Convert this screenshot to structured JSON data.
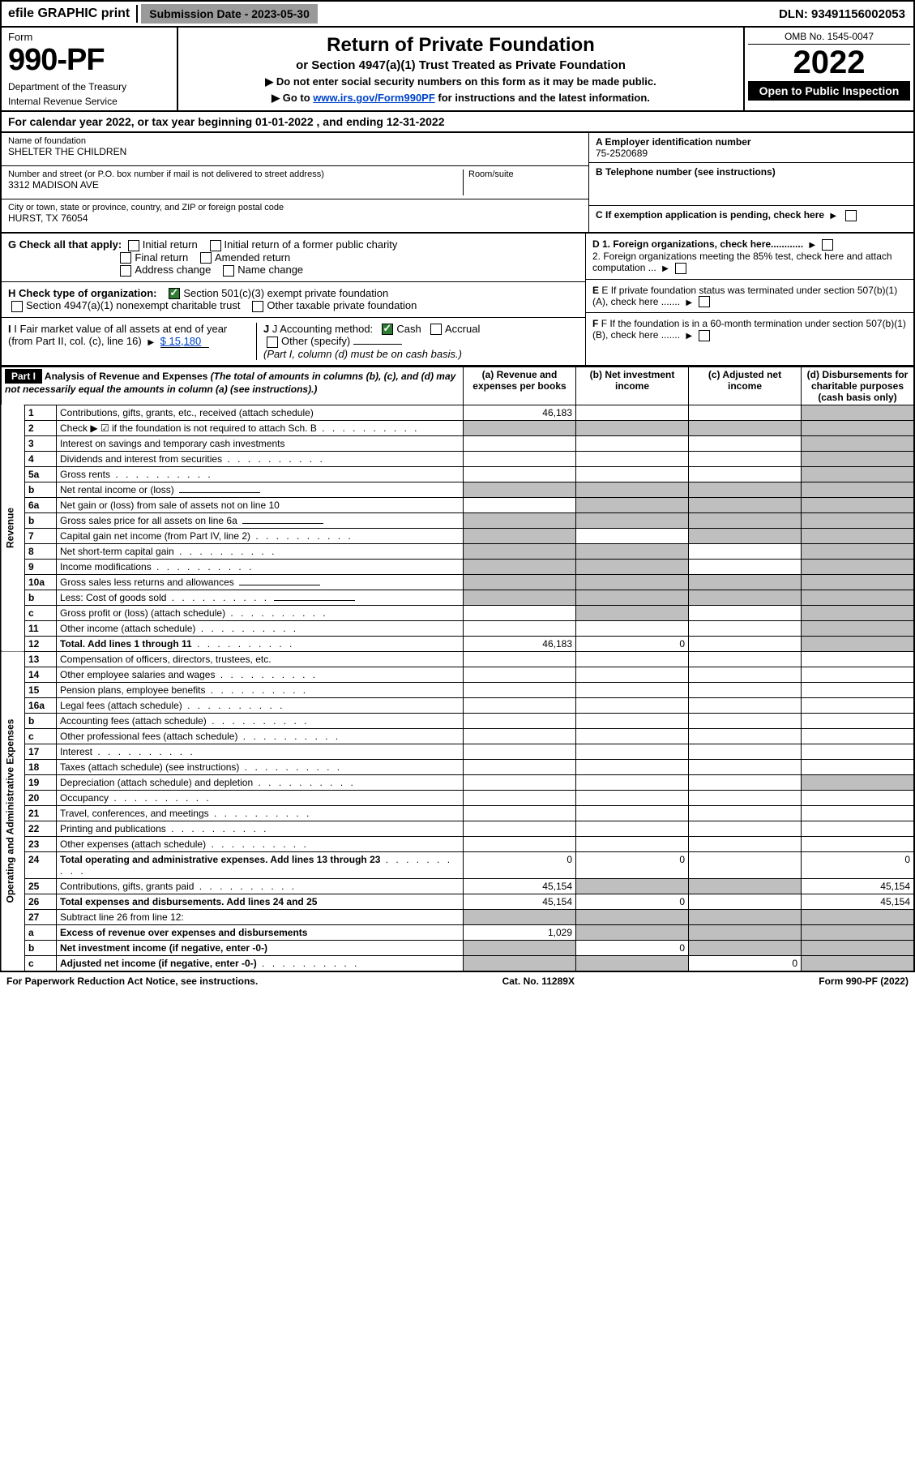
{
  "topbar": {
    "efile": "efile GRAPHIC print",
    "submission_label": "Submission Date - 2023-05-30",
    "dln": "DLN: 93491156002053"
  },
  "header": {
    "form_word": "Form",
    "form_number": "990-PF",
    "dept": "Department of the Treasury",
    "irs": "Internal Revenue Service",
    "title": "Return of Private Foundation",
    "subtitle": "or Section 4947(a)(1) Trust Treated as Private Foundation",
    "note1": "▶ Do not enter social security numbers on this form as it may be made public.",
    "note2_pre": "▶ Go to ",
    "note2_link": "www.irs.gov/Form990PF",
    "note2_post": " for instructions and the latest information.",
    "omb": "OMB No. 1545-0047",
    "year": "2022",
    "open_pub": "Open to Public Inspection"
  },
  "calyear": {
    "text_pre": "For calendar year 2022, or tax year beginning ",
    "begin": "01-01-2022",
    "text_mid": " , and ending ",
    "end": "12-31-2022"
  },
  "id": {
    "name_lbl": "Name of foundation",
    "name": "SHELTER THE CHILDREN",
    "addr_lbl": "Number and street (or P.O. box number if mail is not delivered to street address)",
    "addr": "3312 MADISON AVE",
    "room_lbl": "Room/suite",
    "city_lbl": "City or town, state or province, country, and ZIP or foreign postal code",
    "city": "HURST, TX  76054",
    "ein_lbl": "A Employer identification number",
    "ein": "75-2520689",
    "tel_lbl": "B Telephone number (see instructions)",
    "c_lbl": "C If exemption application is pending, check here"
  },
  "checks": {
    "g_lbl": "G Check all that apply:",
    "g_opts": [
      "Initial return",
      "Initial return of a former public charity",
      "Final return",
      "Amended return",
      "Address change",
      "Name change"
    ],
    "h_lbl": "H Check type of organization:",
    "h1": "Section 501(c)(3) exempt private foundation",
    "h2": "Section 4947(a)(1) nonexempt charitable trust",
    "h3": "Other taxable private foundation",
    "i_lbl": "I Fair market value of all assets at end of year (from Part II, col. (c), line 16)",
    "i_val": "$  15,180",
    "j_lbl": "J Accounting method:",
    "j1": "Cash",
    "j2": "Accrual",
    "j3": "Other (specify)",
    "j_note": "(Part I, column (d) must be on cash basis.)",
    "d1": "D 1. Foreign organizations, check here............",
    "d2": "2. Foreign organizations meeting the 85% test, check here and attach computation ...",
    "e_lbl": "E  If private foundation status was terminated under section 507(b)(1)(A), check here .......",
    "f_lbl": "F  If the foundation is in a 60-month termination under section 507(b)(1)(B), check here ......."
  },
  "part1": {
    "label": "Part I",
    "title": "Analysis of Revenue and Expenses",
    "title_note": " (The total of amounts in columns (b), (c), and (d) may not necessarily equal the amounts in column (a) (see instructions).)",
    "cols": {
      "a": "(a) Revenue and expenses per books",
      "b": "(b) Net investment income",
      "c": "(c) Adjusted net income",
      "d": "(d) Disbursements for charitable purposes (cash basis only)"
    }
  },
  "revenue_label": "Revenue",
  "opex_label": "Operating and Administrative Expenses",
  "rows": [
    {
      "n": "1",
      "desc": "Contributions, gifts, grants, etc., received (attach schedule)",
      "a": "46,183",
      "shade": [
        "d"
      ]
    },
    {
      "n": "2",
      "desc": "Check ▶ ☑ if the foundation is not required to attach Sch. B",
      "dots": true,
      "shade": [
        "a",
        "b",
        "c",
        "d"
      ]
    },
    {
      "n": "3",
      "desc": "Interest on savings and temporary cash investments",
      "shade": [
        "d"
      ]
    },
    {
      "n": "4",
      "desc": "Dividends and interest from securities",
      "dots": true,
      "shade": [
        "d"
      ]
    },
    {
      "n": "5a",
      "desc": "Gross rents",
      "dots": true,
      "shade": [
        "d"
      ]
    },
    {
      "n": "b",
      "desc": "Net rental income or (loss)",
      "shade": [
        "a",
        "b",
        "c",
        "d"
      ],
      "hasline": true
    },
    {
      "n": "6a",
      "desc": "Net gain or (loss) from sale of assets not on line 10",
      "shade": [
        "b",
        "c",
        "d"
      ]
    },
    {
      "n": "b",
      "desc": "Gross sales price for all assets on line 6a",
      "shade": [
        "a",
        "b",
        "c",
        "d"
      ],
      "hasline": true
    },
    {
      "n": "7",
      "desc": "Capital gain net income (from Part IV, line 2)",
      "dots": true,
      "shade": [
        "a",
        "c",
        "d"
      ]
    },
    {
      "n": "8",
      "desc": "Net short-term capital gain",
      "dots": true,
      "shade": [
        "a",
        "b",
        "d"
      ]
    },
    {
      "n": "9",
      "desc": "Income modifications",
      "dots": true,
      "shade": [
        "a",
        "b",
        "d"
      ]
    },
    {
      "n": "10a",
      "desc": "Gross sales less returns and allowances",
      "shade": [
        "a",
        "b",
        "c",
        "d"
      ],
      "hasline": true
    },
    {
      "n": "b",
      "desc": "Less: Cost of goods sold",
      "dots": true,
      "shade": [
        "a",
        "b",
        "c",
        "d"
      ],
      "hasline": true
    },
    {
      "n": "c",
      "desc": "Gross profit or (loss) (attach schedule)",
      "dots": true,
      "shade": [
        "b",
        "d"
      ]
    },
    {
      "n": "11",
      "desc": "Other income (attach schedule)",
      "dots": true,
      "shade": [
        "d"
      ]
    },
    {
      "n": "12",
      "desc": "Total. Add lines 1 through 11",
      "dots": true,
      "bold": true,
      "a": "46,183",
      "b": "0",
      "shade": [
        "d"
      ]
    }
  ],
  "oprows": [
    {
      "n": "13",
      "desc": "Compensation of officers, directors, trustees, etc."
    },
    {
      "n": "14",
      "desc": "Other employee salaries and wages",
      "dots": true
    },
    {
      "n": "15",
      "desc": "Pension plans, employee benefits",
      "dots": true
    },
    {
      "n": "16a",
      "desc": "Legal fees (attach schedule)",
      "dots": true
    },
    {
      "n": "b",
      "desc": "Accounting fees (attach schedule)",
      "dots": true
    },
    {
      "n": "c",
      "desc": "Other professional fees (attach schedule)",
      "dots": true
    },
    {
      "n": "17",
      "desc": "Interest",
      "dots": true
    },
    {
      "n": "18",
      "desc": "Taxes (attach schedule) (see instructions)",
      "dots": true
    },
    {
      "n": "19",
      "desc": "Depreciation (attach schedule) and depletion",
      "dots": true,
      "shade": [
        "d"
      ]
    },
    {
      "n": "20",
      "desc": "Occupancy",
      "dots": true
    },
    {
      "n": "21",
      "desc": "Travel, conferences, and meetings",
      "dots": true
    },
    {
      "n": "22",
      "desc": "Printing and publications",
      "dots": true
    },
    {
      "n": "23",
      "desc": "Other expenses (attach schedule)",
      "dots": true
    },
    {
      "n": "24",
      "desc": "Total operating and administrative expenses. Add lines 13 through 23",
      "dots": true,
      "bold": true,
      "a": "0",
      "b": "0",
      "d": "0"
    },
    {
      "n": "25",
      "desc": "Contributions, gifts, grants paid",
      "dots": true,
      "a": "45,154",
      "d": "45,154",
      "shade": [
        "b",
        "c"
      ]
    },
    {
      "n": "26",
      "desc": "Total expenses and disbursements. Add lines 24 and 25",
      "bold": true,
      "a": "45,154",
      "b": "0",
      "d": "45,154"
    },
    {
      "n": "27",
      "desc": "Subtract line 26 from line 12:",
      "shade": [
        "a",
        "b",
        "c",
        "d"
      ]
    },
    {
      "n": "a",
      "desc": "Excess of revenue over expenses and disbursements",
      "bold": true,
      "a": "1,029",
      "shade": [
        "b",
        "c",
        "d"
      ]
    },
    {
      "n": "b",
      "desc": "Net investment income (if negative, enter -0-)",
      "bold": true,
      "b": "0",
      "shade": [
        "a",
        "c",
        "d"
      ]
    },
    {
      "n": "c",
      "desc": "Adjusted net income (if negative, enter -0-)",
      "bold": true,
      "dots": true,
      "c": "0",
      "shade": [
        "a",
        "b",
        "d"
      ]
    }
  ],
  "footer": {
    "left": "For Paperwork Reduction Act Notice, see instructions.",
    "mid": "Cat. No. 11289X",
    "right": "Form 990-PF (2022)"
  },
  "colors": {
    "topbar_border": "#000000",
    "btn_bg": "#9a9a9a",
    "check_green": "#2e7d32",
    "link": "#0044cc",
    "shade": "#bfbfbf",
    "part_bg": "#000000",
    "part_fg": "#ffffff"
  }
}
